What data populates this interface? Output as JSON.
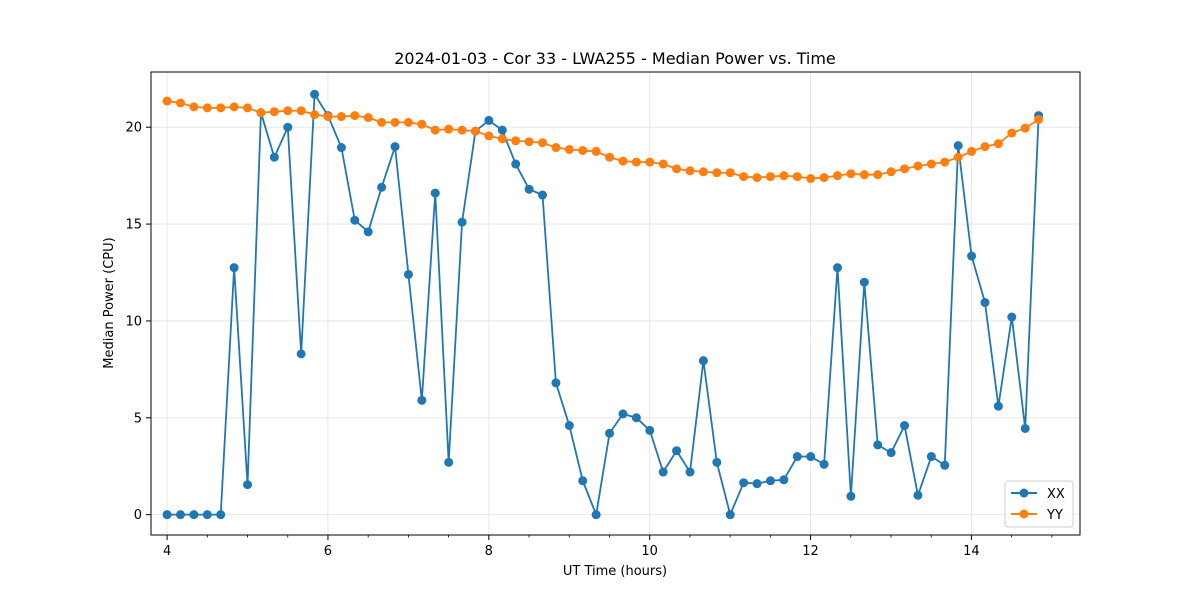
{
  "chart_data": {
    "type": "line",
    "title": "2024-01-03 - Cor 33 - LWA255 - Median Power vs. Time",
    "xlabel": "UT Time (hours)",
    "ylabel": "Median Power (CPU)",
    "xlim": [
      3.8,
      15.35
    ],
    "ylim": [
      -1.05,
      22.85
    ],
    "xticks": [
      4,
      6,
      8,
      10,
      12,
      14
    ],
    "yticks": [
      0,
      5,
      10,
      15,
      20
    ],
    "grid": true,
    "legend_position": "lower-right",
    "series": [
      {
        "name": "XX",
        "color": "#1f77b4",
        "values": [
          0,
          0,
          0,
          0,
          0,
          12.75,
          1.55,
          20.75,
          18.45,
          20.0,
          8.3,
          21.7,
          20.6,
          18.95,
          15.2,
          14.6,
          16.9,
          19.0,
          12.4,
          5.9,
          16.6,
          2.7,
          15.1,
          19.8,
          20.35,
          19.85,
          18.1,
          16.8,
          16.5,
          6.8,
          4.6,
          1.75,
          0,
          4.2,
          5.2,
          5.0,
          4.35,
          2.2,
          3.3,
          2.2,
          7.95,
          2.7,
          0,
          1.65,
          1.6,
          1.75,
          1.8,
          3.0,
          3.0,
          2.6,
          12.75,
          0.95,
          12.0,
          3.6,
          3.2,
          4.6,
          1.0,
          3.0,
          2.55,
          19.05,
          13.35,
          10.95,
          5.6,
          10.2,
          4.45,
          20.6
        ]
      },
      {
        "name": "YY",
        "color": "#ff7f0e",
        "values": [
          21.35,
          21.25,
          21.05,
          21.0,
          21.0,
          21.05,
          21.0,
          20.75,
          20.8,
          20.85,
          20.85,
          20.65,
          20.55,
          20.55,
          20.6,
          20.5,
          20.25,
          20.25,
          20.25,
          20.15,
          19.85,
          19.9,
          19.85,
          19.8,
          19.55,
          19.4,
          19.3,
          19.25,
          19.2,
          18.95,
          18.85,
          18.8,
          18.75,
          18.45,
          18.25,
          18.2,
          18.2,
          18.1,
          17.85,
          17.75,
          17.7,
          17.65,
          17.65,
          17.45,
          17.4,
          17.45,
          17.5,
          17.45,
          17.35,
          17.4,
          17.5,
          17.6,
          17.55,
          17.55,
          17.7,
          17.85,
          18.0,
          18.1,
          18.2,
          18.45,
          18.75,
          19.0,
          19.15,
          19.7,
          19.95,
          20.4
        ]
      }
    ],
    "x_start": 4.0,
    "x_step": 0.1667,
    "x_note": "Data points sampled every ~10 minutes from 4.0 to ~14.83 hours UT"
  }
}
